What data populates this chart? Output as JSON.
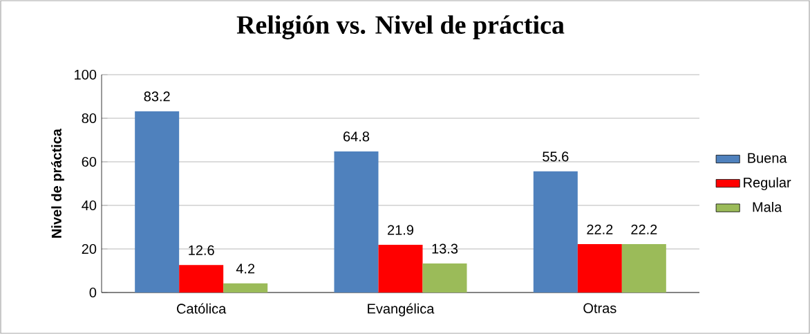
{
  "chart_data": {
    "type": "bar",
    "title": "Religión vs. Nivel de práctica",
    "ylabel": "Nivel de práctica",
    "categories": [
      "Católica",
      "Evangélica",
      "Otras"
    ],
    "series": [
      {
        "name": "Buena",
        "color": "#4f81bd",
        "values": [
          83.2,
          64.8,
          55.6
        ]
      },
      {
        "name": "Regular",
        "color": "#ff0000",
        "values": [
          12.6,
          21.9,
          22.2
        ]
      },
      {
        "name": "Mala",
        "color": "#9bbb59",
        "values": [
          4.2,
          13.3,
          22.2
        ]
      }
    ],
    "ylim": [
      0,
      100
    ],
    "yticks": [
      0,
      20,
      40,
      60,
      80,
      100
    ],
    "grid": "y",
    "legend": "right",
    "data_labels": true
  }
}
